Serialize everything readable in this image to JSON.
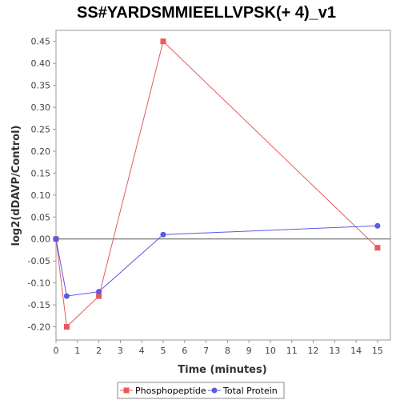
{
  "chart_data": {
    "type": "line",
    "title": "SS#YARDSMMIEELLVPSK(+ 4)_v1",
    "xlabel": "Time (minutes)",
    "ylabel": "log2(dDAVP/Control)",
    "xlim": [
      0,
      15.6
    ],
    "ylim": [
      -0.23,
      0.475
    ],
    "x_ticks": [
      0,
      1,
      2,
      3,
      4,
      5,
      6,
      7,
      8,
      9,
      10,
      11,
      12,
      13,
      14,
      15
    ],
    "y_ticks": [
      -0.2,
      -0.15,
      -0.1,
      -0.05,
      0.0,
      0.05,
      0.1,
      0.15,
      0.2,
      0.25,
      0.3,
      0.35,
      0.4,
      0.45
    ],
    "y_tick_labels": [
      "-0.20",
      "-0.15",
      "-0.10",
      "-0.05",
      "0.00",
      "0.05",
      "0.10",
      "0.15",
      "0.20",
      "0.25",
      "0.30",
      "0.35",
      "0.40",
      "0.45"
    ],
    "grid": false,
    "zero_line": true,
    "legend_position": "bottom",
    "series": [
      {
        "name": "Phosphopeptide",
        "color": "#e85a5a",
        "marker": "square",
        "x": [
          0,
          0.5,
          2,
          5,
          15
        ],
        "y": [
          0.0,
          -0.2,
          -0.13,
          0.45,
          -0.02
        ]
      },
      {
        "name": "Total Protein",
        "color": "#5a5ae8",
        "marker": "circle",
        "x": [
          0,
          0.5,
          2,
          5,
          15
        ],
        "y": [
          0.0,
          -0.13,
          -0.12,
          0.01,
          0.03
        ]
      }
    ]
  }
}
